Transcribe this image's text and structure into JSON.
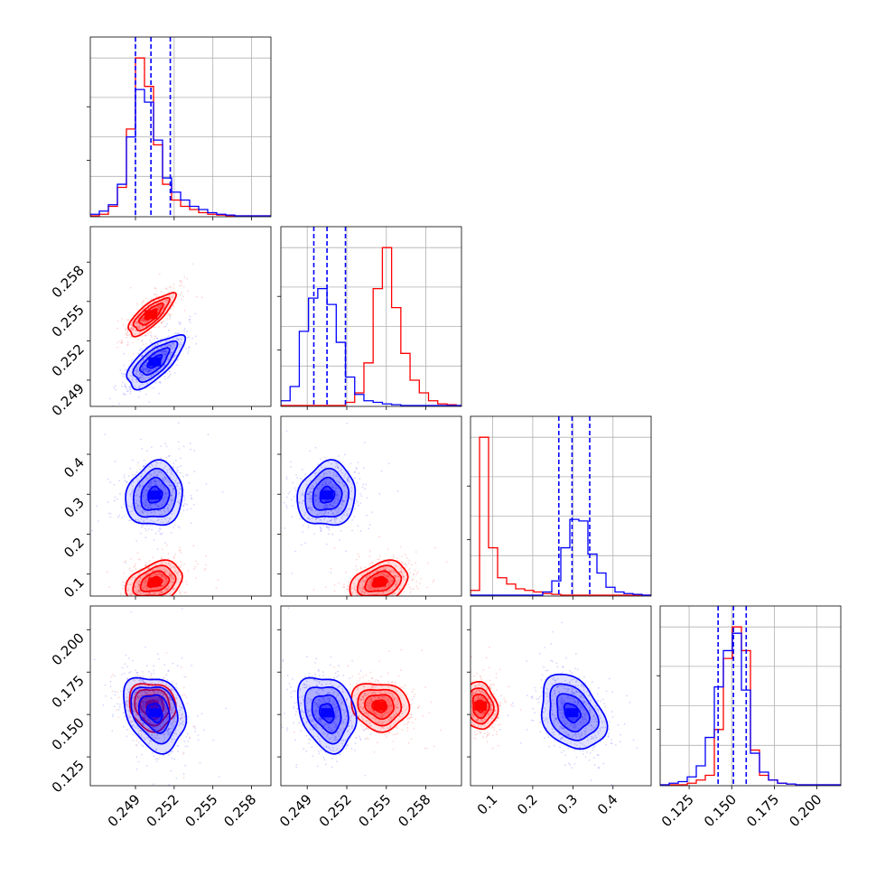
{
  "chart_data": {
    "type": "corner",
    "series": [
      {
        "name": "",
        "color": "#ff0000"
      },
      {
        "name": "",
        "color": "#0000ff"
      }
    ],
    "quantile_lines_color": "#0000ff",
    "grid": true,
    "parameters": [
      {
        "range": [
          0.2455,
          0.2595
        ],
        "ticks": [
          0.249,
          0.252,
          0.255,
          0.258
        ],
        "tick_labels": [
          "0.249",
          "0.252",
          "0.255",
          "0.258"
        ]
      },
      {
        "range": [
          0.247,
          0.2607
        ],
        "ticks": [
          0.249,
          0.252,
          0.255,
          0.258
        ],
        "tick_labels": [
          "0.249",
          "0.252",
          "0.255",
          "0.258"
        ]
      },
      {
        "range": [
          0.045,
          0.495
        ],
        "ticks": [
          0.1,
          0.2,
          0.3,
          0.4
        ],
        "tick_labels": [
          "0.1",
          "0.2",
          "0.3",
          "0.4"
        ]
      },
      {
        "range": [
          0.108,
          0.214
        ],
        "ticks": [
          0.125,
          0.15,
          0.175,
          0.2
        ],
        "tick_labels": [
          "0.125",
          "0.150",
          "0.175",
          "0.200"
        ]
      }
    ],
    "histograms": [
      {
        "param": 0,
        "bins": [
          0.2455,
          0.2462,
          0.2469,
          0.2476,
          0.2483,
          0.249,
          0.2497,
          0.2504,
          0.2511,
          0.2518,
          0.2525,
          0.2532,
          0.2539,
          0.2546,
          0.2553,
          0.256,
          0.2567,
          0.2574,
          0.2581,
          0.2588,
          0.2595
        ],
        "red": [
          0,
          0.01,
          0.06,
          0.18,
          0.55,
          1.0,
          0.82,
          0.45,
          0.2,
          0.1,
          0.06,
          0.04,
          0.02,
          0.01,
          0.005,
          0,
          0,
          0,
          0,
          0
        ],
        "blue": [
          0.01,
          0.03,
          0.07,
          0.2,
          0.5,
          0.8,
          0.72,
          0.48,
          0.24,
          0.15,
          0.1,
          0.06,
          0.04,
          0.02,
          0.01,
          0.005,
          0,
          0,
          0,
          0
        ],
        "quantiles": [
          0.249,
          0.2502,
          0.2517
        ]
      },
      {
        "param": 1,
        "bins": [
          0.247,
          0.2477,
          0.2484,
          0.2491,
          0.2498,
          0.2505,
          0.2512,
          0.2519,
          0.2526,
          0.2533,
          0.254,
          0.2547,
          0.2554,
          0.2561,
          0.2568,
          0.2575,
          0.2582,
          0.2589,
          0.2596,
          0.2603,
          0.2607
        ],
        "red": [
          0,
          0,
          0,
          0,
          0,
          0,
          0,
          0.02,
          0.08,
          0.27,
          0.74,
          1.0,
          0.62,
          0.33,
          0.16,
          0.08,
          0.03,
          0.01,
          0.005,
          0
        ],
        "blue": [
          0.03,
          0.12,
          0.47,
          0.68,
          0.74,
          0.64,
          0.4,
          0.18,
          0.07,
          0.03,
          0.02,
          0.01,
          0.005,
          0,
          0,
          0,
          0,
          0,
          0,
          0
        ],
        "quantiles": [
          0.2495,
          0.2505,
          0.2519
        ]
      },
      {
        "param": 2,
        "bins": [
          0.045,
          0.0675,
          0.09,
          0.1125,
          0.135,
          0.1575,
          0.18,
          0.2025,
          0.225,
          0.2475,
          0.27,
          0.2925,
          0.315,
          0.3375,
          0.36,
          0.3825,
          0.405,
          0.4275,
          0.45,
          0.4725,
          0.495
        ],
        "red": [
          0.03,
          1.0,
          0.3,
          0.11,
          0.07,
          0.04,
          0.03,
          0.02,
          0.01,
          0.005,
          0,
          0,
          0,
          0,
          0,
          0,
          0,
          0,
          0,
          0
        ],
        "blue": [
          0,
          0,
          0,
          0,
          0,
          0,
          0,
          0,
          0.02,
          0.09,
          0.3,
          0.48,
          0.47,
          0.26,
          0.14,
          0.05,
          0.02,
          0.01,
          0.005,
          0
        ],
        "quantiles": [
          0.265,
          0.298,
          0.342
        ]
      },
      {
        "param": 3,
        "bins": [
          0.108,
          0.1133,
          0.1186,
          0.1239,
          0.1292,
          0.1345,
          0.1398,
          0.1451,
          0.1504,
          0.1557,
          0.161,
          0.1663,
          0.1716,
          0.1769,
          0.1822,
          0.1875,
          0.1928,
          0.1981,
          0.2034,
          0.2087,
          0.214
        ],
        "red": [
          0,
          0,
          0,
          0.01,
          0.03,
          0.06,
          0.35,
          0.8,
          1.0,
          0.85,
          0.22,
          0.06,
          0.03,
          0.01,
          0.005,
          0,
          0,
          0,
          0,
          0
        ],
        "blue": [
          0,
          0.01,
          0.02,
          0.05,
          0.12,
          0.3,
          0.62,
          0.85,
          0.96,
          0.6,
          0.2,
          0.08,
          0.03,
          0.01,
          0.005,
          0,
          0,
          0,
          0,
          0
        ],
        "quantiles": [
          0.142,
          0.151,
          0.1585
        ]
      }
    ],
    "pairs": [
      {
        "x": 0,
        "y": 1,
        "red": {
          "mean": [
            0.2502,
            0.254
          ],
          "sd": [
            0.0009,
            0.0008
          ],
          "rho": 0.78
        },
        "blue": {
          "mean": [
            0.2505,
            0.2504
          ],
          "sd": [
            0.0011,
            0.001
          ],
          "rho": 0.7
        }
      },
      {
        "x": 0,
        "y": 2,
        "red": {
          "mean": [
            0.2505,
            0.08
          ],
          "sd": [
            0.0011,
            0.025
          ],
          "rho": 0.3
        },
        "blue": {
          "mean": [
            0.2505,
            0.298
          ],
          "sd": [
            0.0011,
            0.04
          ],
          "rho": 0.1
        }
      },
      {
        "x": 1,
        "y": 2,
        "red": {
          "mean": [
            0.2545,
            0.08
          ],
          "sd": [
            0.0011,
            0.025
          ],
          "rho": 0.3
        },
        "blue": {
          "mean": [
            0.2505,
            0.298
          ],
          "sd": [
            0.0011,
            0.04
          ],
          "rho": 0.1
        }
      },
      {
        "x": 0,
        "y": 3,
        "red": {
          "mean": [
            0.2503,
            0.155
          ],
          "sd": [
            0.0009,
            0.007
          ],
          "rho": -0.1
        },
        "blue": {
          "mean": [
            0.2505,
            0.151
          ],
          "sd": [
            0.0012,
            0.011
          ],
          "rho": -0.25
        }
      },
      {
        "x": 1,
        "y": 3,
        "red": {
          "mean": [
            0.2545,
            0.155
          ],
          "sd": [
            0.0011,
            0.007
          ],
          "rho": -0.1
        },
        "blue": {
          "mean": [
            0.2505,
            0.151
          ],
          "sd": [
            0.0011,
            0.011
          ],
          "rho": -0.25
        }
      },
      {
        "x": 2,
        "y": 3,
        "red": {
          "mean": [
            0.07,
            0.155
          ],
          "sd": [
            0.02,
            0.007
          ],
          "rho": -0.1
        },
        "blue": {
          "mean": [
            0.298,
            0.151
          ],
          "sd": [
            0.04,
            0.011
          ],
          "rho": -0.3
        }
      }
    ]
  }
}
